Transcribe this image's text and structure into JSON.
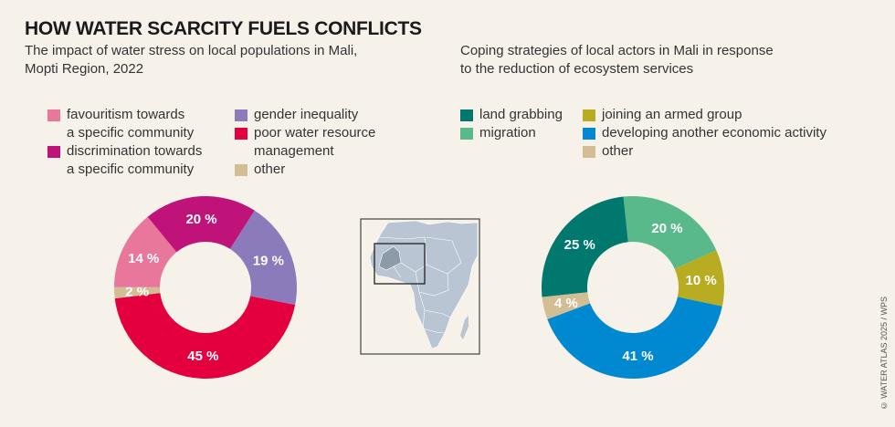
{
  "header": {
    "title": "HOW WATER SCARCITY FUELS CONFLICTS"
  },
  "credit": "© WATER ATLAS 2025 / WPS",
  "chart_data": [
    {
      "type": "pie",
      "donut": true,
      "subtitle": "The impact of water stress on local populations in Mali, Mopti Region, 2022",
      "subtitle_lines": [
        "The impact of water stress on local populations in Mali,",
        "Mopti Region, 2022"
      ],
      "legend": [
        {
          "label_lines": [
            "favouritism towards",
            "a specific community"
          ],
          "color": "#e8779b"
        },
        {
          "label_lines": [
            "discrimination towards",
            "a specific community"
          ],
          "color": "#c0137a"
        },
        {
          "label_lines": [
            "gender inequality"
          ],
          "color": "#8b7bbb"
        },
        {
          "label_lines": [
            "poor water resource",
            "management"
          ],
          "color": "#e4003f"
        },
        {
          "label_lines": [
            "other"
          ],
          "color": "#d2bd94"
        }
      ],
      "slices": [
        {
          "category": "discrimination towards a specific community",
          "value": 20,
          "label": "20 %",
          "color": "#c0137a"
        },
        {
          "category": "gender inequality",
          "value": 19,
          "label": "19 %",
          "color": "#8b7bbb"
        },
        {
          "category": "poor water resource management",
          "value": 45,
          "label": "45 %",
          "color": "#e4003f"
        },
        {
          "category": "other",
          "value": 2,
          "label": "2 %",
          "color": "#d2bd94"
        },
        {
          "category": "favouritism towards a specific community",
          "value": 14,
          "label": "14 %",
          "color": "#e8779b"
        }
      ],
      "unit": "%"
    },
    {
      "type": "pie",
      "donut": true,
      "subtitle": "Coping strategies of local actors in Mali in response to the reduction of ecosystem services",
      "subtitle_lines": [
        "Coping strategies of local actors in Mali in response",
        "to the reduction of ecosystem services"
      ],
      "legend": [
        {
          "label_lines": [
            "land grabbing"
          ],
          "color": "#00786e"
        },
        {
          "label_lines": [
            "migration"
          ],
          "color": "#5ab98a"
        },
        {
          "label_lines": [
            "joining an armed group"
          ],
          "color": "#b8ad22"
        },
        {
          "label_lines": [
            "developing another economic activity"
          ],
          "color": "#0088d0"
        },
        {
          "label_lines": [
            "other"
          ],
          "color": "#d2bd94"
        }
      ],
      "slices": [
        {
          "category": "migration",
          "value": 20,
          "label": "20 %",
          "color": "#5ab98a"
        },
        {
          "category": "joining an armed group",
          "value": 10,
          "label": "10 %",
          "color": "#b8ad22"
        },
        {
          "category": "developing another economic activity",
          "value": 41,
          "label": "41 %",
          "color": "#0088d0"
        },
        {
          "category": "other",
          "value": 4,
          "label": "4 %",
          "color": "#d2bd94"
        },
        {
          "category": "land grabbing",
          "value": 25,
          "label": "25 %",
          "color": "#00786e"
        }
      ],
      "unit": "%"
    }
  ],
  "map": {
    "region": "Africa",
    "highlight": "Mali",
    "fill": "#b9c5d2",
    "highlight_fill": "#8d9aa8"
  }
}
